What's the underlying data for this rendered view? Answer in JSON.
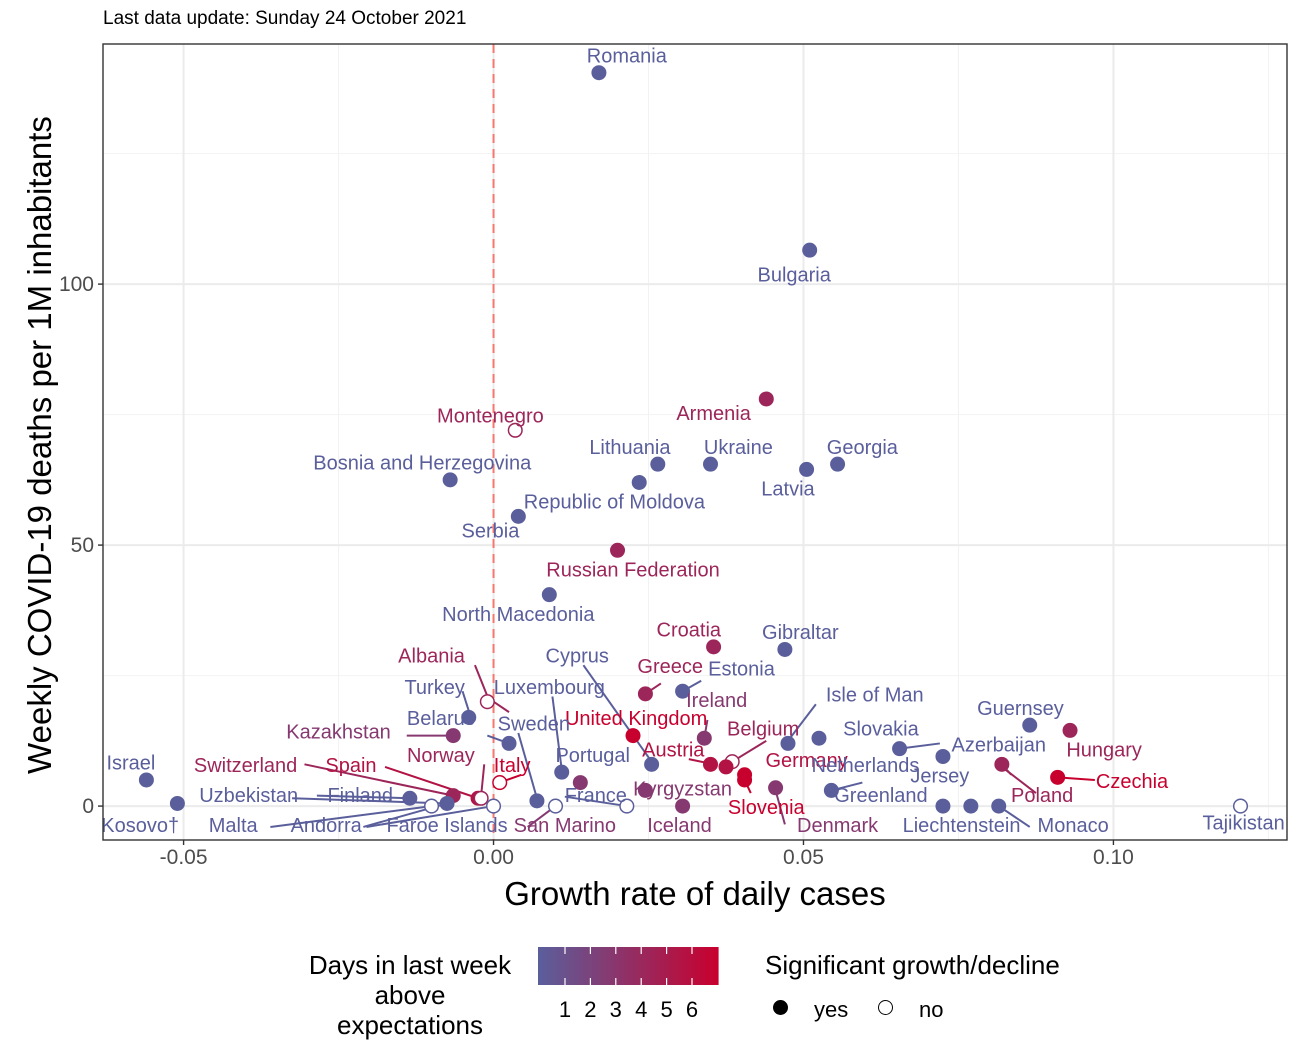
{
  "subtitle": "Last data update: Sunday 24 October 2021",
  "chart_data": {
    "type": "scatter",
    "title": "",
    "xlabel": "Growth rate of daily cases",
    "ylabel": "Weekly COVID-19 deaths per 1M inhabitants",
    "xlim": [
      -0.063,
      0.128
    ],
    "ylim": [
      -6.5,
      146
    ],
    "xticks": [
      -0.05,
      0.0,
      0.05,
      0.1
    ],
    "xtick_labels": [
      "-0.05",
      "0.00",
      "0.05",
      "0.10"
    ],
    "yticks": [
      0,
      50,
      100
    ],
    "ytick_labels": [
      "0",
      "50",
      "100"
    ],
    "grid": true,
    "reference_line": {
      "x": 0.0,
      "style": "dashed",
      "color": "#f8766d"
    },
    "color_scale": {
      "low": "#5a5f9c",
      "high": "#c8002e",
      "min": 1,
      "max": 6
    },
    "points": [
      {
        "name": "Romania",
        "x": 0.017,
        "y": 140.5,
        "days": 1,
        "sig": true
      },
      {
        "name": "Bulgaria",
        "x": 0.051,
        "y": 106.5,
        "days": 1,
        "sig": true
      },
      {
        "name": "Armenia",
        "x": 0.044,
        "y": 78.0,
        "days": 4,
        "sig": true
      },
      {
        "name": "Montenegro",
        "x": 0.0035,
        "y": 72.0,
        "days": 4,
        "sig": false
      },
      {
        "name": "Lithuania",
        "x": 0.0265,
        "y": 65.5,
        "days": 1,
        "sig": true
      },
      {
        "name": "Ukraine",
        "x": 0.035,
        "y": 65.5,
        "days": 1,
        "sig": true
      },
      {
        "name": "Georgia",
        "x": 0.0555,
        "y": 65.5,
        "days": 1,
        "sig": true
      },
      {
        "name": "Latvia",
        "x": 0.0505,
        "y": 64.5,
        "days": 1,
        "sig": true
      },
      {
        "name": "Bosnia and Herzegovina",
        "x": -0.007,
        "y": 62.5,
        "days": 1,
        "sig": true
      },
      {
        "name": "Lithuania-2",
        "x": 0.0235,
        "y": 62.0,
        "days": 1,
        "sig": true
      },
      {
        "name": "Republic of Moldova",
        "x": 0.004,
        "y": 55.5,
        "days": 1,
        "sig": true
      },
      {
        "name": "Russian Federation",
        "x": 0.02,
        "y": 49.0,
        "days": 4,
        "sig": true
      },
      {
        "name": "North Macedonia",
        "x": 0.009,
        "y": 40.5,
        "days": 1,
        "sig": true
      },
      {
        "name": "Croatia",
        "x": 0.0355,
        "y": 30.5,
        "days": 4,
        "sig": true
      },
      {
        "name": "Gibraltar",
        "x": 0.047,
        "y": 30.0,
        "days": 1,
        "sig": true
      },
      {
        "name": "Estonia",
        "x": 0.0305,
        "y": 22.0,
        "days": 1,
        "sig": true
      },
      {
        "name": "Greece",
        "x": 0.0245,
        "y": 21.5,
        "days": 4,
        "sig": true
      },
      {
        "name": "Albania",
        "x": -0.001,
        "y": 20.0,
        "days": 4,
        "sig": false
      },
      {
        "name": "Turkey",
        "x": -0.004,
        "y": 17.0,
        "days": 1,
        "sig": true
      },
      {
        "name": "Guernsey",
        "x": 0.0865,
        "y": 15.5,
        "days": 1,
        "sig": true
      },
      {
        "name": "Hungary",
        "x": 0.093,
        "y": 14.5,
        "days": 4,
        "sig": true
      },
      {
        "name": "United Kingdom",
        "x": 0.0225,
        "y": 13.5,
        "days": 6,
        "sig": true
      },
      {
        "name": "Kazakhstan",
        "x": -0.0065,
        "y": 13.5,
        "days": 3,
        "sig": true
      },
      {
        "name": "Slovakia",
        "x": 0.0525,
        "y": 13.0,
        "days": 1,
        "sig": true
      },
      {
        "name": "Ireland",
        "x": 0.034,
        "y": 13.0,
        "days": 3,
        "sig": true
      },
      {
        "name": "Belarus",
        "x": 0.0025,
        "y": 12.0,
        "days": 1,
        "sig": true
      },
      {
        "name": "Isle of Man",
        "x": 0.0475,
        "y": 12.0,
        "days": 1,
        "sig": true
      },
      {
        "name": "Azerbaijan",
        "x": 0.0655,
        "y": 11.0,
        "days": 1,
        "sig": true
      },
      {
        "name": "Netherlands",
        "x": 0.0725,
        "y": 9.5,
        "days": 1,
        "sig": true
      },
      {
        "name": "Belgium",
        "x": 0.0385,
        "y": 8.5,
        "days": 4,
        "sig": false
      },
      {
        "name": "Cyprus",
        "x": 0.0255,
        "y": 8.0,
        "days": 1,
        "sig": true
      },
      {
        "name": "Austria",
        "x": 0.035,
        "y": 8.0,
        "days": 5,
        "sig": true
      },
      {
        "name": "Germany",
        "x": 0.0375,
        "y": 7.5,
        "days": 5,
        "sig": true
      },
      {
        "name": "Poland",
        "x": 0.082,
        "y": 8.0,
        "days": 4,
        "sig": true
      },
      {
        "name": "Luxembourg",
        "x": 0.011,
        "y": 6.5,
        "days": 1,
        "sig": true
      },
      {
        "name": "Slovenia",
        "x": 0.0405,
        "y": 6.0,
        "days": 6,
        "sig": true
      },
      {
        "name": "Czechia",
        "x": 0.091,
        "y": 5.5,
        "days": 6,
        "sig": true
      },
      {
        "name": "Israel",
        "x": -0.056,
        "y": 5.0,
        "days": 1,
        "sig": true
      },
      {
        "name": "Slovenia-2",
        "x": 0.0405,
        "y": 5.0,
        "days": 6,
        "sig": true
      },
      {
        "name": "Portugal",
        "x": 0.014,
        "y": 4.5,
        "days": 3,
        "sig": true
      },
      {
        "name": "Italy",
        "x": 0.001,
        "y": 4.5,
        "days": 6,
        "sig": false
      },
      {
        "name": "Denmark",
        "x": 0.0455,
        "y": 3.5,
        "days": 3,
        "sig": true
      },
      {
        "name": "Greenland",
        "x": 0.0545,
        "y": 3.0,
        "days": 1,
        "sig": true
      },
      {
        "name": "Kyrgyzstan",
        "x": 0.0245,
        "y": 3.0,
        "days": 3,
        "sig": true
      },
      {
        "name": "Switzerland",
        "x": -0.0065,
        "y": 2.0,
        "days": 4,
        "sig": true
      },
      {
        "name": "Spain",
        "x": -0.0025,
        "y": 1.5,
        "days": 5,
        "sig": true
      },
      {
        "name": "Norway",
        "x": -0.002,
        "y": 1.5,
        "days": 4,
        "sig": false
      },
      {
        "name": "Finland",
        "x": -0.0135,
        "y": 1.5,
        "days": 1,
        "sig": true
      },
      {
        "name": "Sweden",
        "x": 0.007,
        "y": 1.0,
        "days": 1,
        "sig": true
      },
      {
        "name": "Uzbekistan",
        "x": -0.051,
        "y": 0.5,
        "days": 1,
        "sig": true
      },
      {
        "name": "Andorra",
        "x": -0.0075,
        "y": 0.5,
        "days": 1,
        "sig": true
      },
      {
        "name": "Malta",
        "x": -0.01,
        "y": 0.0,
        "days": 1,
        "sig": false
      },
      {
        "name": "Faroe Islands",
        "x": 0.0,
        "y": 0.0,
        "days": 1,
        "sig": false
      },
      {
        "name": "San Marino",
        "x": 0.01,
        "y": 0.0,
        "days": 1,
        "sig": false
      },
      {
        "name": "France",
        "x": 0.0215,
        "y": 0.0,
        "days": 1,
        "sig": false
      },
      {
        "name": "Iceland",
        "x": 0.0305,
        "y": 0.0,
        "days": 3,
        "sig": true
      },
      {
        "name": "Jersey",
        "x": 0.0725,
        "y": 0.0,
        "days": 1,
        "sig": true
      },
      {
        "name": "Liechtenstein",
        "x": 0.077,
        "y": 0.0,
        "days": 1,
        "sig": true
      },
      {
        "name": "Monaco",
        "x": 0.0815,
        "y": 0.0,
        "days": 1,
        "sig": true
      },
      {
        "name": "Tajikistan",
        "x": 0.1205,
        "y": 0.0,
        "days": 1,
        "sig": false
      }
    ],
    "labels": [
      {
        "text": "Romania",
        "x": 0.0215,
        "y": 143.5,
        "days": 1
      },
      {
        "text": "Bulgaria",
        "x": 0.0485,
        "y": 101.5,
        "days": 1
      },
      {
        "text": "Armenia",
        "x": 0.0355,
        "y": 75.0,
        "days": 4
      },
      {
        "text": "Montenegro",
        "x": -0.0005,
        "y": 74.5,
        "days": 4
      },
      {
        "text": "Lithuania",
        "x": 0.022,
        "y": 68.5,
        "days": 1
      },
      {
        "text": "Ukraine",
        "x": 0.0395,
        "y": 68.5,
        "days": 1
      },
      {
        "text": "Georgia",
        "x": 0.0595,
        "y": 68.5,
        "days": 1
      },
      {
        "text": "Latvia",
        "x": 0.0475,
        "y": 60.5,
        "days": 1
      },
      {
        "text": "Bosnia and Herzegovina",
        "x": -0.0115,
        "y": 65.5,
        "days": 1
      },
      {
        "text": "Republic of Moldova",
        "x": 0.0195,
        "y": 58.0,
        "days": 1
      },
      {
        "text": "Serbia",
        "x": -0.0005,
        "y": 52.5,
        "days": 1
      },
      {
        "text": "Russian Federation",
        "x": 0.0225,
        "y": 45.0,
        "days": 4
      },
      {
        "text": "North Macedonia",
        "x": 0.004,
        "y": 36.5,
        "days": 1
      },
      {
        "text": "Croatia",
        "x": 0.0315,
        "y": 33.5,
        "days": 4
      },
      {
        "text": "Gibraltar",
        "x": 0.0495,
        "y": 33.0,
        "days": 1
      },
      {
        "text": "Cyprus",
        "x": 0.0135,
        "y": 28.5,
        "days": 1
      },
      {
        "text": "Estonia",
        "x": 0.04,
        "y": 26.0,
        "days": 1
      },
      {
        "text": "Greece",
        "x": 0.0285,
        "y": 26.5,
        "days": 4
      },
      {
        "text": "Albania",
        "x": -0.01,
        "y": 28.5,
        "days": 4
      },
      {
        "text": "Luxembourg",
        "x": 0.009,
        "y": 22.5,
        "days": 1
      },
      {
        "text": "Turkey",
        "x": -0.0095,
        "y": 22.5,
        "days": 1
      },
      {
        "text": "Ireland",
        "x": 0.036,
        "y": 20.0,
        "days": 3
      },
      {
        "text": "Isle of Man",
        "x": 0.0615,
        "y": 21.0,
        "days": 1
      },
      {
        "text": "Guernsey",
        "x": 0.085,
        "y": 18.5,
        "days": 1
      },
      {
        "text": "United Kingdom",
        "x": 0.023,
        "y": 16.5,
        "days": 6
      },
      {
        "text": "Belarus",
        "x": -0.0085,
        "y": 16.5,
        "days": 1
      },
      {
        "text": "Sweden",
        "x": 0.0065,
        "y": 15.5,
        "days": 1
      },
      {
        "text": "Belgium",
        "x": 0.0435,
        "y": 14.5,
        "days": 4
      },
      {
        "text": "Slovakia",
        "x": 0.0625,
        "y": 14.5,
        "days": 1
      },
      {
        "text": "Kazakhstan",
        "x": -0.025,
        "y": 14.0,
        "days": 3
      },
      {
        "text": "Azerbaijan",
        "x": 0.0815,
        "y": 11.5,
        "days": 1
      },
      {
        "text": "Hungary",
        "x": 0.0985,
        "y": 10.5,
        "days": 4
      },
      {
        "text": "Austria",
        "x": 0.029,
        "y": 10.5,
        "days": 5
      },
      {
        "text": "Portugal",
        "x": 0.016,
        "y": 9.5,
        "days": 1
      },
      {
        "text": "Norway",
        "x": -0.0085,
        "y": 9.5,
        "days": 4
      },
      {
        "text": "Israel",
        "x": -0.0585,
        "y": 8.0,
        "days": 1
      },
      {
        "text": "Germany",
        "x": 0.0505,
        "y": 8.5,
        "days": 5
      },
      {
        "text": "Netherlands",
        "x": 0.06,
        "y": 7.5,
        "days": 1
      },
      {
        "text": "Switzerland",
        "x": -0.04,
        "y": 7.5,
        "days": 4
      },
      {
        "text": "Spain",
        "x": -0.023,
        "y": 7.5,
        "days": 5
      },
      {
        "text": "Italy",
        "x": 0.003,
        "y": 7.5,
        "days": 6
      },
      {
        "text": "Jersey",
        "x": 0.072,
        "y": 5.5,
        "days": 1
      },
      {
        "text": "Czechia",
        "x": 0.103,
        "y": 4.5,
        "days": 6
      },
      {
        "text": "Kyrgyzstan",
        "x": 0.0305,
        "y": 3.0,
        "days": 3
      },
      {
        "text": "Uzbekistan",
        "x": -0.0395,
        "y": 1.8,
        "days": 1
      },
      {
        "text": "Finland",
        "x": -0.0215,
        "y": 1.8,
        "days": 1
      },
      {
        "text": "France",
        "x": 0.0165,
        "y": 1.8,
        "days": 1
      },
      {
        "text": "Greenland",
        "x": 0.0625,
        "y": 1.8,
        "days": 1
      },
      {
        "text": "Poland",
        "x": 0.0885,
        "y": 1.8,
        "days": 4
      },
      {
        "text": "Slovenia",
        "x": 0.044,
        "y": -0.5,
        "days": 6
      },
      {
        "text": "Kosovo†",
        "x": -0.057,
        "y": -4.0,
        "days": 1
      },
      {
        "text": "Malta",
        "x": -0.042,
        "y": -4.0,
        "days": 1
      },
      {
        "text": "Andorra",
        "x": -0.027,
        "y": -4.0,
        "days": 1
      },
      {
        "text": "Faroe Islands",
        "x": -0.0075,
        "y": -4.0,
        "days": 1
      },
      {
        "text": "San Marino",
        "x": 0.0115,
        "y": -4.0,
        "days": 3
      },
      {
        "text": "Iceland",
        "x": 0.03,
        "y": -4.0,
        "days": 3
      },
      {
        "text": "Denmark",
        "x": 0.0555,
        "y": -4.0,
        "days": 3
      },
      {
        "text": "Liechtenstein",
        "x": 0.0755,
        "y": -4.0,
        "days": 1
      },
      {
        "text": "Monaco",
        "x": 0.0935,
        "y": -4.0,
        "days": 1
      },
      {
        "text": "Tajikistan",
        "x": 0.121,
        "y": -3.5,
        "days": 1
      }
    ],
    "segments": [
      {
        "x1": 0.0025,
        "y1": 18.0,
        "x2": 0.0,
        "y2": 20.0,
        "days": 4
      },
      {
        "x1": -0.003,
        "y1": 27.0,
        "x2": -0.0008,
        "y2": 20.5,
        "days": 4
      },
      {
        "x1": -0.005,
        "y1": 22.0,
        "x2": -0.0038,
        "y2": 17.5,
        "days": 1
      },
      {
        "x1": 0.0095,
        "y1": 21.0,
        "x2": 0.011,
        "y2": 7.0,
        "days": 1
      },
      {
        "x1": 0.0145,
        "y1": 27.0,
        "x2": 0.0255,
        "y2": 8.5,
        "days": 1
      },
      {
        "x1": 0.0335,
        "y1": 24.0,
        "x2": 0.0305,
        "y2": 22.0,
        "days": 1
      },
      {
        "x1": 0.027,
        "y1": 23.5,
        "x2": 0.0245,
        "y2": 21.5,
        "days": 4
      },
      {
        "x1": 0.0345,
        "y1": 16.5,
        "x2": 0.034,
        "y2": 13.0,
        "days": 3
      },
      {
        "x1": 0.052,
        "y1": 19.5,
        "x2": 0.0475,
        "y2": 12.5,
        "days": 1
      },
      {
        "x1": 0.004,
        "y1": 14.0,
        "x2": 0.007,
        "y2": 1.5,
        "days": 1
      },
      {
        "x1": -0.001,
        "y1": 13.5,
        "x2": 0.0025,
        "y2": 12.0,
        "days": 1
      },
      {
        "x1": -0.014,
        "y1": 13.5,
        "x2": -0.0065,
        "y2": 13.5,
        "days": 3
      },
      {
        "x1": 0.044,
        "y1": 12.5,
        "x2": 0.0385,
        "y2": 8.5,
        "days": 4
      },
      {
        "x1": 0.072,
        "y1": 12.0,
        "x2": 0.0655,
        "y2": 11.0,
        "days": 1
      },
      {
        "x1": 0.0315,
        "y1": 9.0,
        "x2": 0.0355,
        "y2": 8.0,
        "days": 5
      },
      {
        "x1": -0.0305,
        "y1": 8.0,
        "x2": -0.0065,
        "y2": 2.0,
        "days": 4
      },
      {
        "x1": -0.0175,
        "y1": 7.5,
        "x2": -0.0025,
        "y2": 1.5,
        "days": 5
      },
      {
        "x1": -0.0015,
        "y1": 8.0,
        "x2": -0.002,
        "y2": 2.0,
        "days": 4
      },
      {
        "x1": 0.0045,
        "y1": 6.0,
        "x2": 0.001,
        "y2": 4.5,
        "days": 6
      },
      {
        "x1": 0.0835,
        "y1": 6.0,
        "x2": 0.082,
        "y2": 8.0,
        "days": 4
      },
      {
        "x1": 0.097,
        "y1": 5.0,
        "x2": 0.091,
        "y2": 5.5,
        "days": 6
      },
      {
        "x1": 0.0595,
        "y1": 4.5,
        "x2": 0.0545,
        "y2": 3.0,
        "days": 1
      },
      {
        "x1": 0.047,
        "y1": -3.5,
        "x2": 0.0455,
        "y2": 3.0,
        "days": 3
      },
      {
        "x1": 0.0415,
        "y1": 2.5,
        "x2": 0.0405,
        "y2": 5.0,
        "days": 6
      },
      {
        "x1": 0.0875,
        "y1": 2.5,
        "x2": 0.082,
        "y2": 7.5,
        "days": 4
      },
      {
        "x1": -0.051,
        "y1": -0.5,
        "x2": -0.051,
        "y2": 0.5,
        "days": 1
      },
      {
        "x1": -0.0285,
        "y1": 2.0,
        "x2": -0.0135,
        "y2": 1.5,
        "days": 1
      },
      {
        "x1": -0.0325,
        "y1": 1.5,
        "x2": -0.0075,
        "y2": 0.5,
        "days": 1
      },
      {
        "x1": -0.036,
        "y1": -4.0,
        "x2": -0.01,
        "y2": 0.0,
        "days": 1
      },
      {
        "x1": -0.021,
        "y1": -4.0,
        "x2": -0.0075,
        "y2": 0.5,
        "days": 1
      },
      {
        "x1": -0.0205,
        "y1": -4.0,
        "x2": 0.0,
        "y2": 0.0,
        "days": 1
      },
      {
        "x1": 0.0055,
        "y1": -4.0,
        "x2": 0.01,
        "y2": 0.0,
        "days": 3
      },
      {
        "x1": 0.0115,
        "y1": 1.8,
        "x2": 0.0215,
        "y2": 0.0,
        "days": 1
      },
      {
        "x1": 0.0255,
        "y1": 3.0,
        "x2": 0.0245,
        "y2": 3.0,
        "days": 3
      },
      {
        "x1": 0.0865,
        "y1": -4.0,
        "x2": 0.0815,
        "y2": 0.0,
        "days": 1
      }
    ]
  },
  "legend": {
    "color_title_lines": [
      "Days in last week",
      "above",
      "expectations"
    ],
    "color_ticks": [
      "1",
      "2",
      "3",
      "4",
      "5",
      "6"
    ],
    "shape_title": "Significant growth/decline",
    "shape_items": [
      "yes",
      "no"
    ]
  }
}
